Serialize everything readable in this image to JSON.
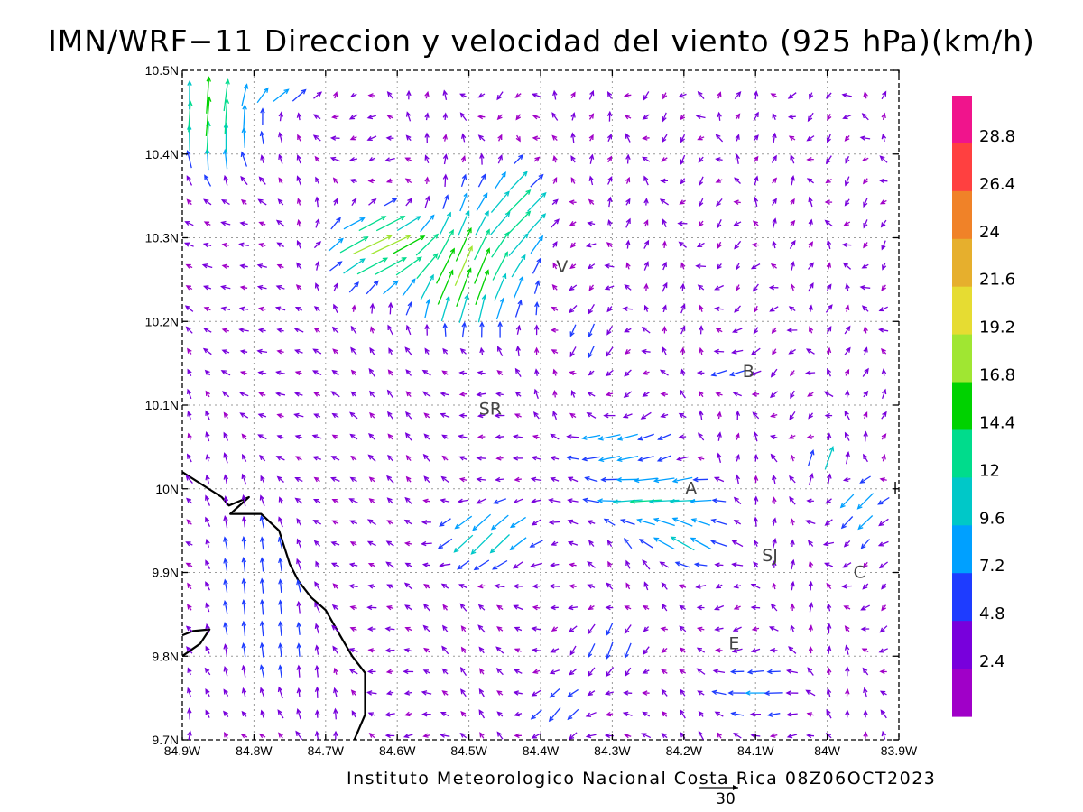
{
  "title": "IMN/WRF−11 Direccion y velocidad del viento (925 hPa)(km/h)",
  "credit": "Instituto Meteorologico Nacional Costa Rica 08Z06OCT2023",
  "reference_vector": {
    "label": "30",
    "speed": 30
  },
  "axes": {
    "lon_range": [
      -84.9,
      -83.9
    ],
    "lat_range": [
      9.7,
      10.5
    ],
    "lon_ticks": [
      {
        "value": -84.9,
        "label": "84.9W"
      },
      {
        "value": -84.8,
        "label": "84.8W"
      },
      {
        "value": -84.7,
        "label": "84.7W"
      },
      {
        "value": -84.6,
        "label": "84.6W"
      },
      {
        "value": -84.5,
        "label": "84.5W"
      },
      {
        "value": -84.4,
        "label": "84.4W"
      },
      {
        "value": -84.3,
        "label": "84.3W"
      },
      {
        "value": -84.2,
        "label": "84.2W"
      },
      {
        "value": -84.1,
        "label": "84.1W"
      },
      {
        "value": -84.0,
        "label": "84W"
      },
      {
        "value": -83.9,
        "label": "83.9W"
      }
    ],
    "lat_ticks": [
      {
        "value": 9.7,
        "label": "9.7N"
      },
      {
        "value": 9.8,
        "label": "9.8N"
      },
      {
        "value": 9.9,
        "label": "9.9N"
      },
      {
        "value": 10.0,
        "label": "10N"
      },
      {
        "value": 10.1,
        "label": "10.1N"
      },
      {
        "value": 10.2,
        "label": "10.2N"
      },
      {
        "value": 10.3,
        "label": "10.3N"
      },
      {
        "value": 10.4,
        "label": "10.4N"
      },
      {
        "value": 10.5,
        "label": "10.5N"
      }
    ],
    "grid": "dotted"
  },
  "colorbar": {
    "labels": [
      "28.8",
      "26.4",
      "24",
      "21.6",
      "19.2",
      "16.8",
      "14.4",
      "12",
      "9.6",
      "7.2",
      "4.8",
      "2.4"
    ],
    "colors": [
      "#f0148c",
      "#ff4040",
      "#f08228",
      "#e6af2d",
      "#e6dc32",
      "#a0e632",
      "#00d200",
      "#00dc8c",
      "#00c8c8",
      "#00a0ff",
      "#1e3cff",
      "#7800dc",
      "#a000c8"
    ]
  },
  "places": [
    {
      "label": "V",
      "lon": -84.37,
      "lat": 10.265
    },
    {
      "label": "B",
      "lon": -84.11,
      "lat": 10.14
    },
    {
      "label": "SR",
      "lon": -84.47,
      "lat": 10.095
    },
    {
      "label": "A",
      "lon": -84.19,
      "lat": 10.0
    },
    {
      "label": "I",
      "lon": -83.905,
      "lat": 10.0
    },
    {
      "label": "SJ",
      "lon": -84.08,
      "lat": 9.92
    },
    {
      "label": "C",
      "lon": -83.955,
      "lat": 9.9
    },
    {
      "label": "E",
      "lon": -84.13,
      "lat": 9.815
    }
  ],
  "coastline": [
    [
      [
        -84.9,
        10.02
      ],
      [
        -84.845,
        9.99
      ],
      [
        -84.835,
        9.98
      ],
      [
        -84.807,
        9.99
      ],
      [
        -84.833,
        9.97
      ],
      [
        -84.79,
        9.97
      ],
      [
        -84.765,
        9.95
      ],
      [
        -84.75,
        9.91
      ],
      [
        -84.738,
        9.89
      ],
      [
        -84.72,
        9.87
      ],
      [
        -84.7,
        9.855
      ],
      [
        -84.68,
        9.825
      ],
      [
        -84.663,
        9.8
      ],
      [
        -84.645,
        9.78
      ],
      [
        -84.645,
        9.73
      ],
      [
        -84.66,
        9.7
      ]
    ],
    [
      [
        -84.9,
        9.825
      ],
      [
        -84.885,
        9.83
      ],
      [
        -84.862,
        9.832
      ],
      [
        -84.875,
        9.815
      ],
      [
        -84.9,
        9.8
      ]
    ]
  ],
  "wind_field": {
    "grid_lon": {
      "start": -84.89,
      "step": 0.0255,
      "count": 40
    },
    "grid_lat": {
      "start": 9.705,
      "step": 0.0255,
      "count": 31
    },
    "jets": [
      {
        "lon": -84.51,
        "lat": 10.26,
        "dir_deg": 20,
        "speed": 18,
        "radius_lon": 0.08,
        "radius_lat": 0.07
      },
      {
        "lon": -84.43,
        "lat": 10.33,
        "dir_deg": 45,
        "speed": 14,
        "radius_lon": 0.05,
        "radius_lat": 0.07
      },
      {
        "lon": -84.62,
        "lat": 10.29,
        "dir_deg": 65,
        "speed": 18,
        "radius_lon": 0.07,
        "radius_lat": 0.05
      },
      {
        "lon": -84.86,
        "lat": 10.45,
        "dir_deg": 5,
        "speed": 16,
        "radius_lon": 0.06,
        "radius_lat": 0.07
      },
      {
        "lon": -84.75,
        "lat": 10.49,
        "dir_deg": 60,
        "speed": 12,
        "radius_lon": 0.06,
        "radius_lat": 0.03
      },
      {
        "lon": -84.25,
        "lat": 9.99,
        "dir_deg": 265,
        "speed": 13,
        "radius_lon": 0.09,
        "radius_lat": 0.03
      },
      {
        "lon": -84.48,
        "lat": 9.94,
        "dir_deg": 225,
        "speed": 12,
        "radius_lon": 0.07,
        "radius_lat": 0.04
      },
      {
        "lon": -84.3,
        "lat": 10.05,
        "dir_deg": 255,
        "speed": 10,
        "radius_lon": 0.07,
        "radius_lat": 0.03
      },
      {
        "lon": -84.2,
        "lat": 9.94,
        "dir_deg": 300,
        "speed": 11,
        "radius_lon": 0.06,
        "radius_lat": 0.03
      },
      {
        "lon": -84.0,
        "lat": 10.03,
        "dir_deg": 20,
        "speed": 11,
        "radius_lon": 0.04,
        "radius_lat": 0.03
      },
      {
        "lon": -83.95,
        "lat": 9.98,
        "dir_deg": 225,
        "speed": 9,
        "radius_lon": 0.04,
        "radius_lat": 0.04
      },
      {
        "lon": -84.1,
        "lat": 9.76,
        "dir_deg": 270,
        "speed": 8,
        "radius_lon": 0.06,
        "radius_lat": 0.03
      },
      {
        "lon": -84.3,
        "lat": 9.81,
        "dir_deg": 200,
        "speed": 7,
        "radius_lon": 0.07,
        "radius_lat": 0.04
      },
      {
        "lon": -84.38,
        "lat": 9.73,
        "dir_deg": 220,
        "speed": 7,
        "radius_lon": 0.05,
        "radius_lat": 0.04
      },
      {
        "lon": -84.14,
        "lat": 10.14,
        "dir_deg": 250,
        "speed": 7,
        "radius_lon": 0.04,
        "radius_lat": 0.03
      },
      {
        "lon": -84.34,
        "lat": 10.18,
        "dir_deg": 200,
        "speed": 6,
        "radius_lon": 0.04,
        "radius_lat": 0.04
      },
      {
        "lon": -84.8,
        "lat": 9.85,
        "dir_deg": 355,
        "speed": 6,
        "radius_lon": 0.1,
        "radius_lat": 0.15
      }
    ]
  }
}
